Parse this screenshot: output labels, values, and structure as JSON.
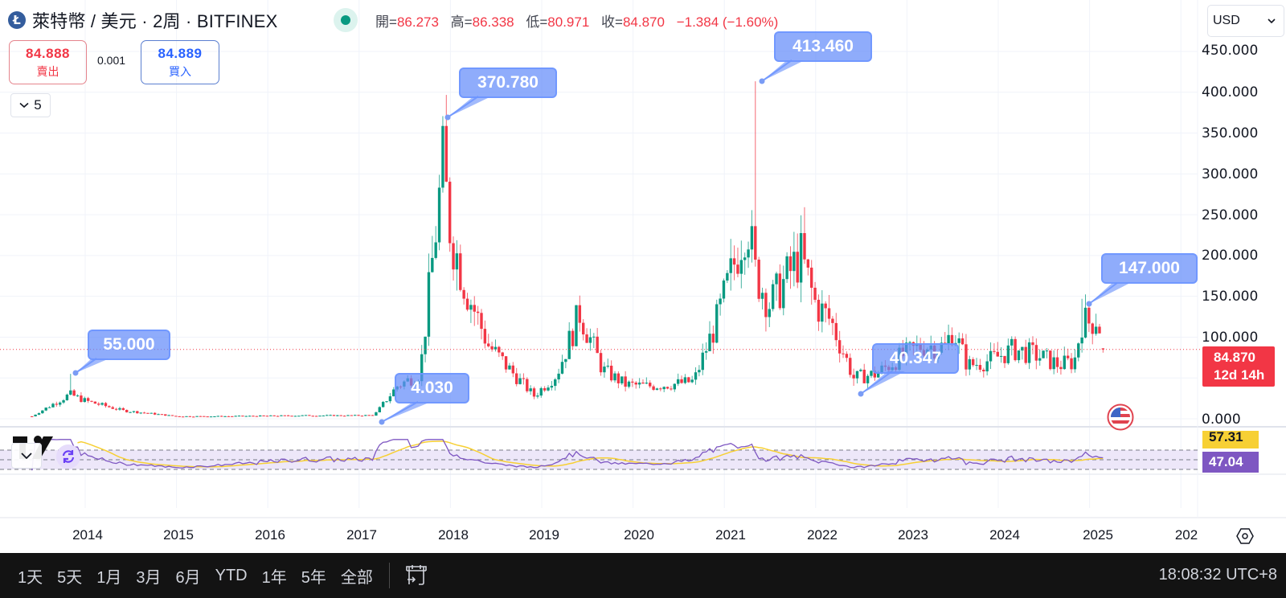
{
  "header": {
    "coin_logo_glyph": "Ł",
    "symbol": "萊特幣 / 美元 · 2周 · BITFINEX",
    "market_status": "open",
    "ohlc": {
      "open_label": "開=",
      "open": "86.273",
      "high_label": "高=",
      "high": "86.338",
      "low_label": "低=",
      "low": "80.971",
      "close_label": "收=",
      "close": "84.870",
      "change": "−1.384 (−1.60%)"
    }
  },
  "trade": {
    "sell_price": "84.888",
    "sell_label": "賣出",
    "spread": "0.001",
    "buy_price": "84.889",
    "buy_label": "買入"
  },
  "indicators_toggle": {
    "icon": "chevron-down-icon",
    "count": "5"
  },
  "currency": {
    "selected": "USD"
  },
  "colors": {
    "up": "#089981",
    "down": "#f23645",
    "annotation": "#6e96ff",
    "rsi_line": "#7e57c2",
    "rsi_ma": "#f7d034",
    "rsi_band": "#ede7f9"
  },
  "price_axis": {
    "labels": [
      "450.000",
      "400.000",
      "350.000",
      "300.000",
      "250.000",
      "200.000",
      "150.000",
      "100.000",
      "50.000",
      "0.000"
    ],
    "last_price": "84.870",
    "countdown": "12d 14h"
  },
  "rsi_axis": {
    "ma_value": "57.31",
    "rsi_value": "47.04"
  },
  "annotations": [
    {
      "label": "55.000"
    },
    {
      "label": "4.030"
    },
    {
      "label": "370.780"
    },
    {
      "label": "413.460"
    },
    {
      "label": "40.347"
    },
    {
      "label": "147.000"
    }
  ],
  "time_axis": {
    "years": [
      "2014",
      "2015",
      "2016",
      "2017",
      "2018",
      "2019",
      "2020",
      "2021",
      "2022",
      "2023",
      "2024",
      "2025",
      "202"
    ]
  },
  "bottom_bar": {
    "ranges": [
      "1天",
      "5天",
      "1月",
      "3月",
      "6月",
      "YTD",
      "1年",
      "5年",
      "全部"
    ],
    "clock": "18:08:32 UTC+8"
  },
  "chart_data": {
    "type": "candlestick",
    "title": "萊特幣 / 美元 · 2周 · BITFINEX",
    "interval": "2W",
    "xlabel": "",
    "ylabel": "USD",
    "ylim": [
      0,
      450
    ],
    "yticks": [
      0,
      50,
      100,
      150,
      200,
      250,
      300,
      350,
      400,
      450
    ],
    "grid": true,
    "annotations_values": [
      {
        "label": "55.000",
        "date": "2013-11",
        "value": 55.0
      },
      {
        "label": "4.030",
        "date": "2017-03",
        "value": 4.03
      },
      {
        "label": "370.780",
        "date": "2017-12",
        "value": 370.78
      },
      {
        "label": "413.460",
        "date": "2021-05",
        "value": 413.46
      },
      {
        "label": "40.347",
        "date": "2022-06",
        "value": 40.347
      },
      {
        "label": "147.000",
        "date": "2024-12",
        "value": 147.0
      }
    ],
    "last": {
      "open": 86.273,
      "high": 86.338,
      "low": 80.971,
      "close": 84.87,
      "change": -1.384,
      "change_pct": -1.6
    },
    "approx_close_series": {
      "x": [
        "2013-06",
        "2013-11",
        "2014-01",
        "2014-06",
        "2015-01",
        "2015-06",
        "2016-01",
        "2016-06",
        "2017-01",
        "2017-03",
        "2017-06",
        "2017-09",
        "2017-12",
        "2018-01",
        "2018-03",
        "2018-06",
        "2018-09",
        "2018-12",
        "2019-03",
        "2019-06",
        "2019-09",
        "2019-12",
        "2020-03",
        "2020-06",
        "2020-09",
        "2020-12",
        "2021-02",
        "2021-04",
        "2021-05",
        "2021-07",
        "2021-09",
        "2021-11",
        "2022-01",
        "2022-03",
        "2022-06",
        "2022-09",
        "2022-12",
        "2023-03",
        "2023-06",
        "2023-07",
        "2023-09",
        "2023-12",
        "2024-03",
        "2024-06",
        "2024-09",
        "2024-11",
        "2024-12",
        "2025-01",
        "2025-02",
        "2025-03"
      ],
      "values": [
        3,
        30,
        22,
        10,
        3,
        3,
        3.5,
        4,
        4,
        4.5,
        40,
        55,
        310,
        230,
        160,
        90,
        58,
        28,
        55,
        130,
        60,
        42,
        40,
        42,
        46,
        120,
        180,
        250,
        180,
        140,
        170,
        200,
        140,
        120,
        50,
        55,
        75,
        90,
        88,
        110,
        65,
        72,
        85,
        78,
        66,
        70,
        120,
        118,
        125,
        84.87
      ]
    },
    "rsi": {
      "period": 14,
      "value": 47.04,
      "ma_value": 57.31,
      "bands": [
        30,
        70
      ]
    }
  }
}
